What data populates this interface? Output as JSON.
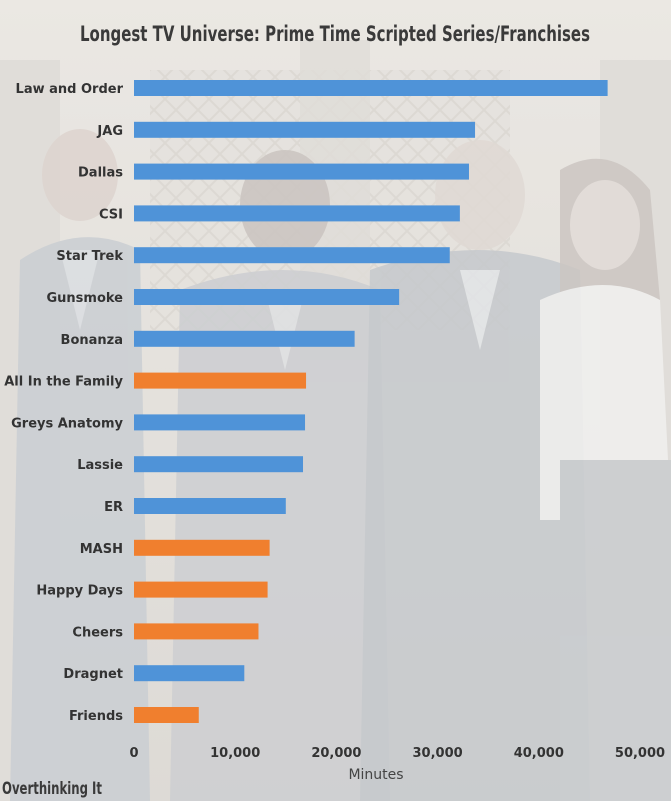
{
  "chart_data": {
    "type": "bar",
    "orientation": "horizontal",
    "title": "Longest TV Universe: Prime Time Scripted Series/Franchises",
    "xlabel": "Minutes",
    "ylabel": "",
    "xlim": [
      0,
      50000
    ],
    "x_ticks": [
      0,
      10000,
      20000,
      30000,
      40000,
      50000
    ],
    "x_tick_labels": [
      "0",
      "10,000",
      "20,000",
      "30,000",
      "40,000",
      "50,000"
    ],
    "grid": false,
    "legend": "none",
    "colors": {
      "blue": "#4f93d8",
      "orange": "#f07f2e"
    },
    "categories": [
      "Law and Order",
      "JAG",
      "Dallas",
      "CSI",
      "Star Trek",
      "Gunsmoke",
      "Bonanza",
      "All In the Family",
      "Greys Anatomy",
      "Lassie",
      "ER",
      "MASH",
      "Happy Days",
      "Cheers",
      "Dragnet",
      "Friends"
    ],
    "values": [
      46800,
      33700,
      33100,
      32200,
      31200,
      26200,
      21800,
      17000,
      16900,
      16700,
      15000,
      13400,
      13200,
      12300,
      10900,
      6400
    ],
    "bar_colors": [
      "blue",
      "blue",
      "blue",
      "blue",
      "blue",
      "blue",
      "blue",
      "orange",
      "blue",
      "blue",
      "blue",
      "orange",
      "orange",
      "orange",
      "blue",
      "orange"
    ]
  },
  "watermark": "Overthinking It"
}
